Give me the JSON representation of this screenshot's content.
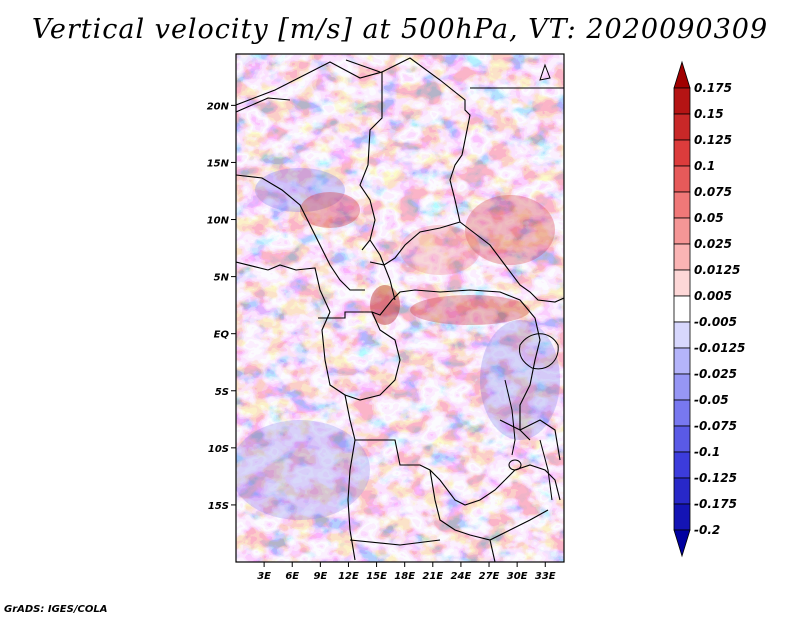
{
  "title": "Vertical velocity [m/s] at 500hPa, VT: 2020090309",
  "credit": "GrADS: IGES/COLA",
  "map": {
    "lat_labels": [
      "20N",
      "15N",
      "10N",
      "5N",
      "EQ",
      "5S",
      "10S",
      "15S"
    ],
    "lon_labels": [
      "3E",
      "6E",
      "9E",
      "12E",
      "15E",
      "18E",
      "21E",
      "24E",
      "27E",
      "30E",
      "33E"
    ],
    "lat_values": [
      20,
      15,
      10,
      5,
      0,
      -5,
      -10,
      -15
    ],
    "lon_values": [
      3,
      6,
      9,
      12,
      15,
      18,
      21,
      24,
      27,
      30,
      33
    ],
    "lat_range": [
      -20,
      24.5
    ],
    "lon_range": [
      0,
      35
    ]
  },
  "colorbar": {
    "labels": [
      "0.175",
      "0.15",
      "0.125",
      "0.1",
      "0.075",
      "0.05",
      "0.025",
      "0.0125",
      "0.005",
      "-0.005",
      "-0.0125",
      "-0.025",
      "-0.05",
      "-0.075",
      "-0.1",
      "-0.125",
      "-0.175",
      "-0.2"
    ],
    "colors": [
      "#a00000",
      "#b41414",
      "#c82828",
      "#dc3c3c",
      "#e65a5a",
      "#f07878",
      "#f59696",
      "#fab4b4",
      "#fdd7d7",
      "#ffffff",
      "#d7d7fd",
      "#b4b4fa",
      "#9696f5",
      "#7878f0",
      "#5a5ae6",
      "#3c3cdc",
      "#2828c8",
      "#1414b4",
      "#0000a0"
    ]
  }
}
